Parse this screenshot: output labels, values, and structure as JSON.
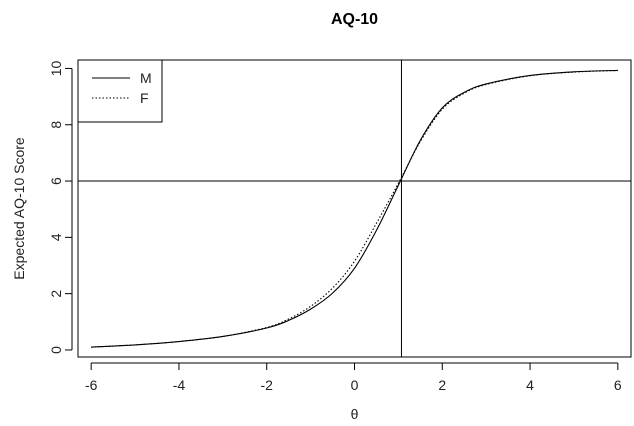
{
  "chart_data": {
    "type": "line",
    "title": "AQ-10",
    "xlabel": "θ",
    "ylabel": "Expected AQ-10 Score",
    "xlim": [
      -6.3,
      6.3
    ],
    "ylim": [
      -0.25,
      10.3
    ],
    "xticks": [
      -6,
      -4,
      -2,
      0,
      2,
      4,
      6
    ],
    "yticks": [
      0,
      2,
      4,
      6,
      8,
      10
    ],
    "grid": false,
    "legend": {
      "position": "top-left"
    },
    "series": [
      {
        "name": "M",
        "style": "solid",
        "color": "#000000",
        "x": [
          -6,
          -5,
          -4,
          -3,
          -2,
          -1.5,
          -1,
          -0.5,
          0,
          0.5,
          1,
          1.5,
          2,
          2.5,
          3,
          4,
          5,
          6
        ],
        "y": [
          0.1,
          0.18,
          0.3,
          0.48,
          0.78,
          1.05,
          1.45,
          2.02,
          2.9,
          4.25,
          5.85,
          7.45,
          8.6,
          9.15,
          9.45,
          9.75,
          9.88,
          9.93
        ]
      },
      {
        "name": "F",
        "style": "dotted",
        "color": "#000000",
        "x": [
          -6,
          -5,
          -4,
          -3,
          -2,
          -1.5,
          -1,
          -0.5,
          0,
          0.5,
          1,
          1.5,
          2,
          2.5,
          3,
          4,
          5,
          6
        ],
        "y": [
          0.1,
          0.18,
          0.3,
          0.48,
          0.8,
          1.1,
          1.55,
          2.2,
          3.15,
          4.5,
          5.92,
          7.4,
          8.55,
          9.12,
          9.43,
          9.74,
          9.87,
          9.93
        ]
      }
    ],
    "reference_lines": {
      "horizontal": 6,
      "vertical": 1.07
    }
  }
}
